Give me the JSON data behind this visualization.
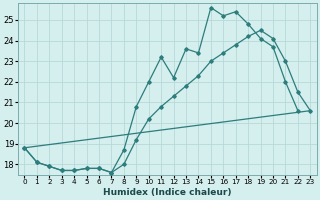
{
  "xlabel": "Humidex (Indice chaleur)",
  "bg_color": "#d5eeee",
  "grid_color": "#b8d8d8",
  "line_color": "#2d7d7d",
  "xlim": [
    -0.5,
    23.5
  ],
  "ylim": [
    17.5,
    25.8
  ],
  "yticks": [
    18,
    19,
    20,
    21,
    22,
    23,
    24,
    25
  ],
  "xticks": [
    0,
    1,
    2,
    3,
    4,
    5,
    6,
    7,
    8,
    9,
    10,
    11,
    12,
    13,
    14,
    15,
    16,
    17,
    18,
    19,
    20,
    21,
    22,
    23
  ],
  "line1_x": [
    0,
    1,
    2,
    3,
    4,
    5,
    6,
    7,
    8,
    9,
    10,
    11,
    12,
    13,
    14,
    15,
    16,
    17,
    18,
    19,
    20,
    21,
    22
  ],
  "line1_y": [
    18.8,
    18.1,
    17.9,
    17.7,
    17.7,
    17.8,
    17.8,
    17.6,
    18.7,
    20.8,
    22.0,
    23.2,
    22.2,
    23.6,
    23.4,
    25.6,
    25.2,
    25.4,
    24.8,
    24.1,
    23.7,
    22.0,
    20.6
  ],
  "line2_x": [
    0,
    1,
    2,
    3,
    4,
    5,
    6,
    7,
    8,
    9,
    10,
    11,
    12,
    13,
    14,
    15,
    16,
    17,
    18,
    19,
    20,
    21,
    22,
    23
  ],
  "line2_y": [
    18.8,
    18.1,
    17.9,
    17.7,
    17.7,
    17.8,
    17.8,
    17.6,
    18.0,
    19.2,
    20.2,
    20.8,
    21.3,
    21.8,
    22.3,
    23.0,
    23.4,
    23.8,
    24.2,
    24.5,
    24.1,
    23.0,
    21.5,
    20.6
  ],
  "line3_x": [
    0,
    23
  ],
  "line3_y": [
    18.8,
    20.6
  ]
}
